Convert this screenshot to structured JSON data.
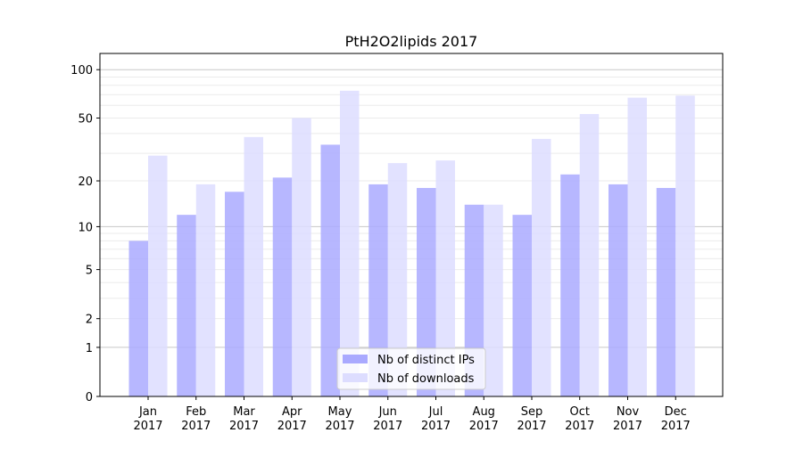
{
  "chart_data": {
    "type": "bar",
    "title": "PtH2O2lipids 2017",
    "xlabel": "",
    "ylabel": "",
    "yscale": "log(1+x)",
    "ylim": [
      0,
      120
    ],
    "yticks": [
      0,
      1,
      2,
      5,
      10,
      20,
      50,
      100
    ],
    "grid": true,
    "legend_position": "bottom-center",
    "categories": [
      "Jan\n2017",
      "Feb\n2017",
      "Mar\n2017",
      "Apr\n2017",
      "May\n2017",
      "Jun\n2017",
      "Jul\n2017",
      "Aug\n2017",
      "Sep\n2017",
      "Oct\n2017",
      "Nov\n2017",
      "Dec\n2017"
    ],
    "series": [
      {
        "name": "Nb of distinct IPs",
        "color": "#aaaaff",
        "values": [
          8,
          12,
          17,
          21,
          34,
          19,
          18,
          14,
          12,
          22,
          19,
          18
        ]
      },
      {
        "name": "Nb of downloads",
        "color": "#ddddff",
        "values": [
          29,
          19,
          38,
          50,
          74,
          26,
          27,
          14,
          37,
          53,
          67,
          69
        ]
      }
    ]
  }
}
